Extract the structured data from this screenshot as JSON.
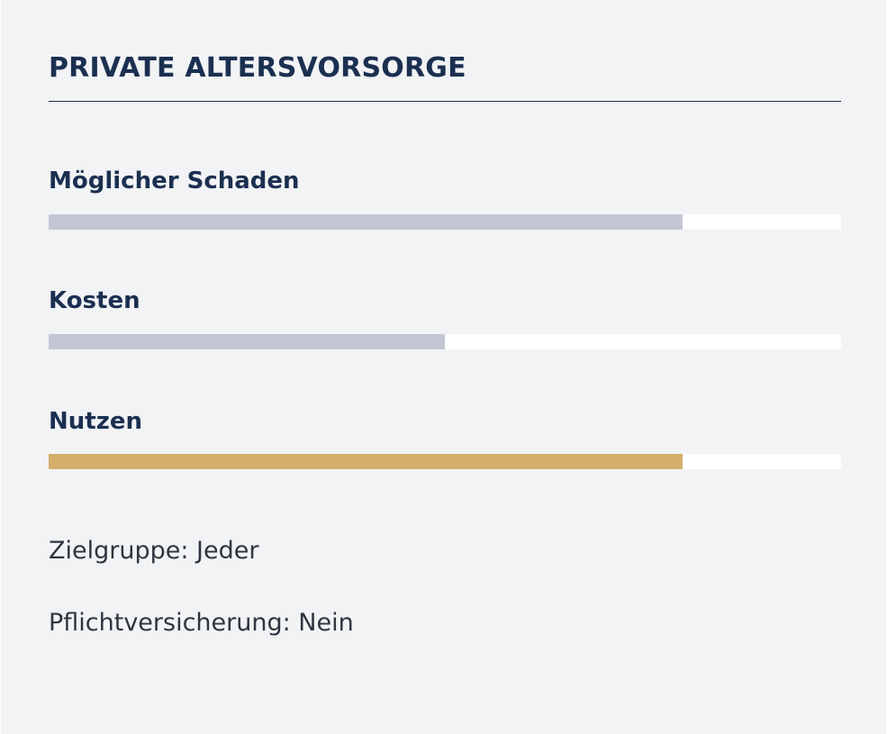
{
  "card": {
    "title": "PRIVATE ALTERSVORSORGE"
  },
  "metrics": [
    {
      "label": "Möglicher Schaden",
      "value": 0.8,
      "color": "#c3c7d4"
    },
    {
      "label": "Kosten",
      "value": 0.5,
      "color": "#c3c7d4"
    },
    {
      "label": "Nutzen",
      "value": 0.8,
      "color": "#d4ae6b"
    }
  ],
  "details": {
    "target_group": "Zielgruppe: Jeder",
    "mandatory": "Pflichtversicherung: Nein"
  },
  "colors": {
    "primary": "#1b2f50",
    "background": "#f2f3f5",
    "track": "#ffffff"
  }
}
